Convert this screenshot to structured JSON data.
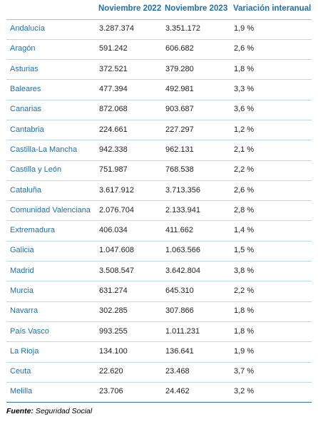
{
  "table": {
    "headers": [
      "",
      "Noviembre 2022",
      "Noviembre 2023",
      "Variación interanual"
    ],
    "rows": [
      [
        "Andalucía",
        "3.287.374",
        "3.351.172",
        "1,9 %"
      ],
      [
        "Aragón",
        "591.242",
        "606.682",
        "2,6 %"
      ],
      [
        "Asturias",
        "372.521",
        "379.280",
        "1,8 %"
      ],
      [
        "Baleares",
        "477.394",
        "492.981",
        "3,3 %"
      ],
      [
        "Canarias",
        "872.068",
        "903.687",
        "3,6 %"
      ],
      [
        "Cantabria",
        "224.661",
        "227.297",
        "1,2 %"
      ],
      [
        "Castilla-La Mancha",
        "942.338",
        "962.131",
        "2,1 %"
      ],
      [
        "Castilla y León",
        "751.987",
        "768.538",
        "2,2 %"
      ],
      [
        "Cataluña",
        "3.617.912",
        "3.713.356",
        "2,6 %"
      ],
      [
        "Comunidad Valenciana",
        "2.076.704",
        "2.133.941",
        "2,8 %"
      ],
      [
        "Extremadura",
        "406.034",
        "411.662",
        "1,4 %"
      ],
      [
        "Galicia",
        "1.047.608",
        "1.063.566",
        "1,5 %"
      ],
      [
        "Madrid",
        "3.508.547",
        "3.642.804",
        "3,8 %"
      ],
      [
        "Murcia",
        "631.274",
        "645.310",
        "2,2 %"
      ],
      [
        "Navarra",
        "302.285",
        "307.866",
        "1,8 %"
      ],
      [
        "País Vasco",
        "993.255",
        "1.011.231",
        "1,8 %"
      ],
      [
        "La Rioja",
        "134.100",
        "136.641",
        "1,9 %"
      ],
      [
        "Ceuta",
        "22.620",
        "23.468",
        "3,7 %"
      ],
      [
        "Melilla",
        "23.706",
        "24.462",
        "3,2 %"
      ]
    ]
  },
  "source": {
    "label": "Fuente:",
    "text": " Seguridad Social"
  },
  "colors": {
    "header_text": "#1f6fb2",
    "region_text": "#1f6fb2",
    "row_divider": "#bdd7ee",
    "bottom_rule": "#2e75b6"
  }
}
